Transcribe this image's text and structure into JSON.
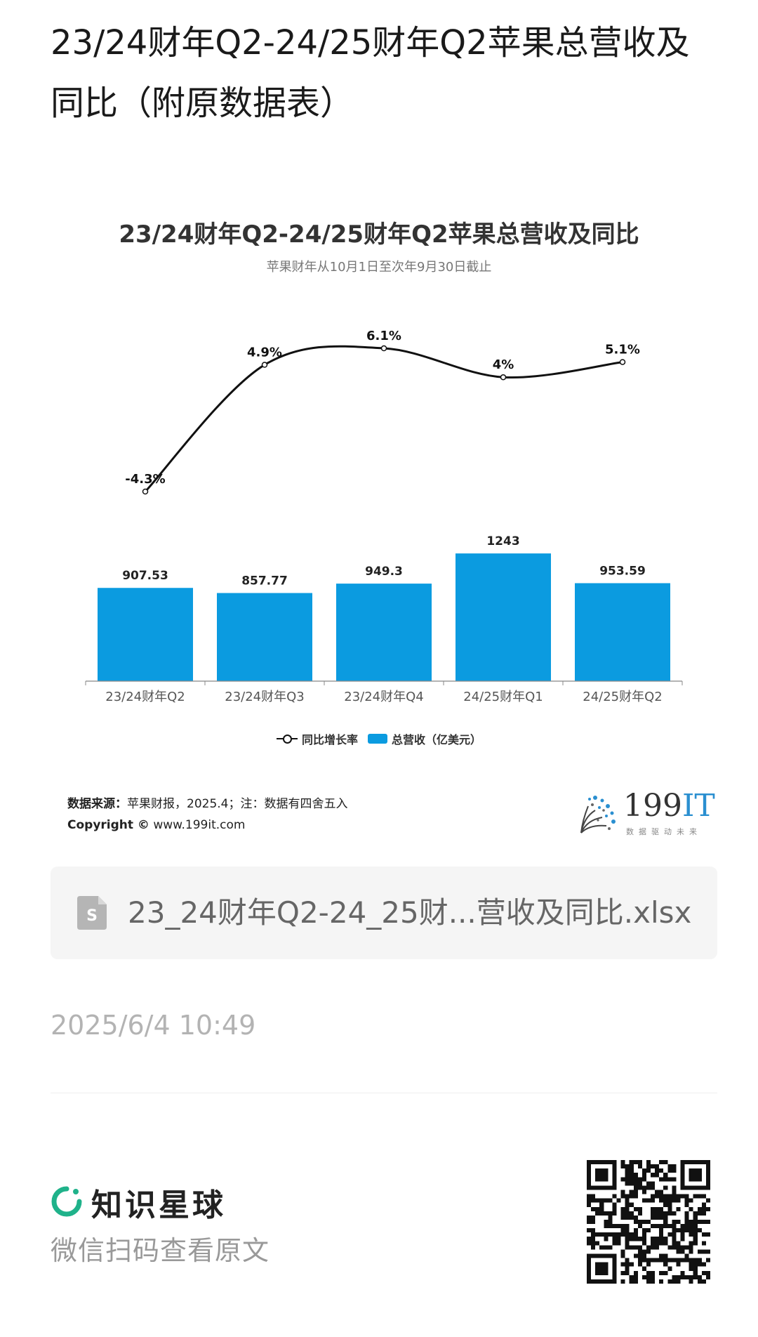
{
  "page": {
    "title": "23/24财年Q2-24/25财年Q2苹果总营收及同比（附原数据表）"
  },
  "chart_data": {
    "type": "bar",
    "title": "23/24财年Q2-24/25财年Q2苹果总营收及同比",
    "subtitle": "苹果财年从10月1日至次年9月30日截止",
    "categories": [
      "23/24财年Q2",
      "23/24财年Q3",
      "23/24财年Q4",
      "24/25财年Q1",
      "24/25财年Q2"
    ],
    "series": [
      {
        "name": "总营收（亿美元）",
        "type": "bar",
        "color": "#0b9be0",
        "values": [
          907.53,
          857.77,
          949.3,
          1243,
          953.59
        ],
        "labels": [
          "907.53",
          "857.77",
          "949.3",
          "1243",
          "953.59"
        ]
      },
      {
        "name": "同比增长率",
        "type": "line",
        "color": "#111111",
        "values": [
          -4.3,
          4.9,
          6.1,
          4,
          5.1
        ],
        "labels": [
          "-4.3%",
          "4.9%",
          "6.1%",
          "4%",
          "5.1%"
        ]
      }
    ],
    "legend_position": "bottom-center",
    "grid": false
  },
  "source": {
    "label": "数据来源：",
    "text": "苹果财报，2025.4；注：数据有四舍五入",
    "copyright_label": "Copyright ©",
    "copyright_site": "www.199it.com"
  },
  "brand": {
    "name_main": "199",
    "name_accent": "IT",
    "tagline": "数据驱动未来",
    "accent_color": "#2a8fd0"
  },
  "attachment": {
    "icon": "spreadsheet-file-icon",
    "file_name": "23_24财年Q2-24_25财...营收及同比.xlsx"
  },
  "timestamp": "2025/6/4 10:49",
  "footer": {
    "app_name": "知识星球",
    "logo_icon": "zsxq-logo-icon",
    "logo_color": "#1fb28a",
    "scan_hint": "微信扫码查看原文",
    "qr_icon": "qr-code-icon"
  }
}
